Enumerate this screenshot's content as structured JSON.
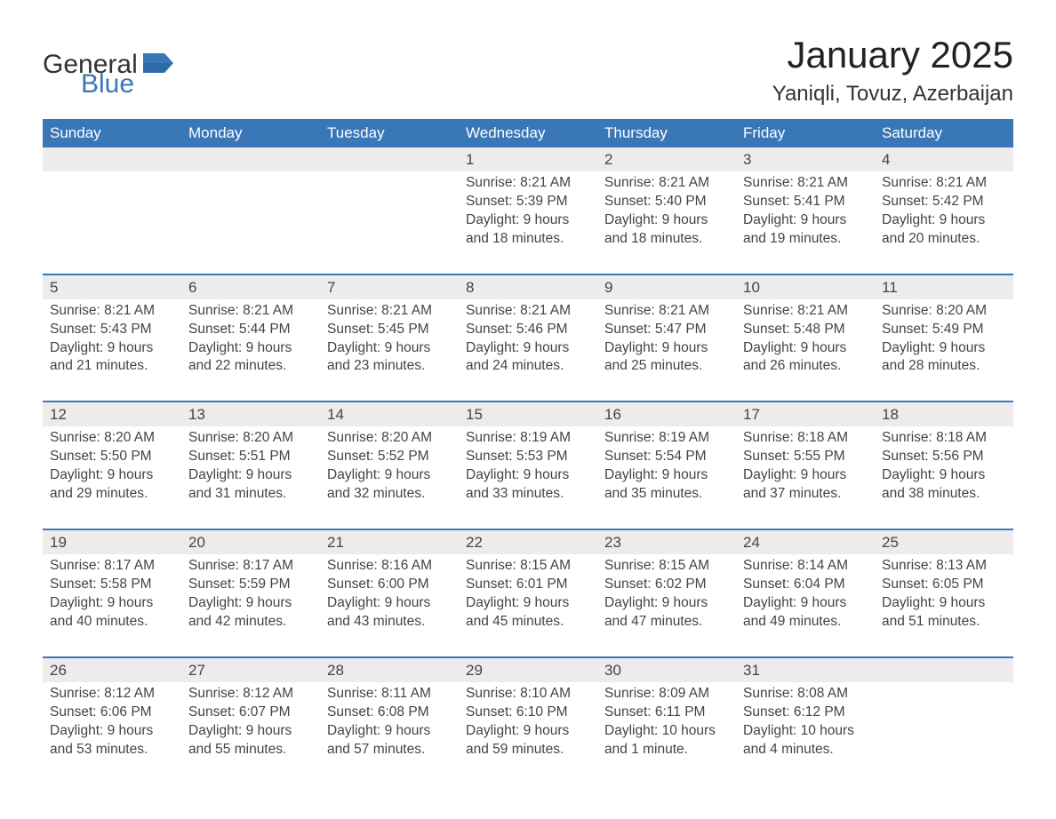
{
  "brand": {
    "general": "General",
    "blue": "Blue"
  },
  "title": "January 2025",
  "location": "Yaniqli, Tovuz, Azerbaijan",
  "colors": {
    "header_bg": "#3a77b7",
    "header_text": "#ffffff",
    "daynum_bg": "#ececec",
    "text": "#444444",
    "page_bg": "#ffffff",
    "rule": "#3a77b7"
  },
  "layout": {
    "columns": 7,
    "rows": 5
  },
  "day_headers": [
    "Sunday",
    "Monday",
    "Tuesday",
    "Wednesday",
    "Thursday",
    "Friday",
    "Saturday"
  ],
  "weeks": [
    [
      null,
      null,
      null,
      {
        "n": "1",
        "sunrise": "Sunrise: 8:21 AM",
        "sunset": "Sunset: 5:39 PM",
        "d1": "Daylight: 9 hours",
        "d2": "and 18 minutes."
      },
      {
        "n": "2",
        "sunrise": "Sunrise: 8:21 AM",
        "sunset": "Sunset: 5:40 PM",
        "d1": "Daylight: 9 hours",
        "d2": "and 18 minutes."
      },
      {
        "n": "3",
        "sunrise": "Sunrise: 8:21 AM",
        "sunset": "Sunset: 5:41 PM",
        "d1": "Daylight: 9 hours",
        "d2": "and 19 minutes."
      },
      {
        "n": "4",
        "sunrise": "Sunrise: 8:21 AM",
        "sunset": "Sunset: 5:42 PM",
        "d1": "Daylight: 9 hours",
        "d2": "and 20 minutes."
      }
    ],
    [
      {
        "n": "5",
        "sunrise": "Sunrise: 8:21 AM",
        "sunset": "Sunset: 5:43 PM",
        "d1": "Daylight: 9 hours",
        "d2": "and 21 minutes."
      },
      {
        "n": "6",
        "sunrise": "Sunrise: 8:21 AM",
        "sunset": "Sunset: 5:44 PM",
        "d1": "Daylight: 9 hours",
        "d2": "and 22 minutes."
      },
      {
        "n": "7",
        "sunrise": "Sunrise: 8:21 AM",
        "sunset": "Sunset: 5:45 PM",
        "d1": "Daylight: 9 hours",
        "d2": "and 23 minutes."
      },
      {
        "n": "8",
        "sunrise": "Sunrise: 8:21 AM",
        "sunset": "Sunset: 5:46 PM",
        "d1": "Daylight: 9 hours",
        "d2": "and 24 minutes."
      },
      {
        "n": "9",
        "sunrise": "Sunrise: 8:21 AM",
        "sunset": "Sunset: 5:47 PM",
        "d1": "Daylight: 9 hours",
        "d2": "and 25 minutes."
      },
      {
        "n": "10",
        "sunrise": "Sunrise: 8:21 AM",
        "sunset": "Sunset: 5:48 PM",
        "d1": "Daylight: 9 hours",
        "d2": "and 26 minutes."
      },
      {
        "n": "11",
        "sunrise": "Sunrise: 8:20 AM",
        "sunset": "Sunset: 5:49 PM",
        "d1": "Daylight: 9 hours",
        "d2": "and 28 minutes."
      }
    ],
    [
      {
        "n": "12",
        "sunrise": "Sunrise: 8:20 AM",
        "sunset": "Sunset: 5:50 PM",
        "d1": "Daylight: 9 hours",
        "d2": "and 29 minutes."
      },
      {
        "n": "13",
        "sunrise": "Sunrise: 8:20 AM",
        "sunset": "Sunset: 5:51 PM",
        "d1": "Daylight: 9 hours",
        "d2": "and 31 minutes."
      },
      {
        "n": "14",
        "sunrise": "Sunrise: 8:20 AM",
        "sunset": "Sunset: 5:52 PM",
        "d1": "Daylight: 9 hours",
        "d2": "and 32 minutes."
      },
      {
        "n": "15",
        "sunrise": "Sunrise: 8:19 AM",
        "sunset": "Sunset: 5:53 PM",
        "d1": "Daylight: 9 hours",
        "d2": "and 33 minutes."
      },
      {
        "n": "16",
        "sunrise": "Sunrise: 8:19 AM",
        "sunset": "Sunset: 5:54 PM",
        "d1": "Daylight: 9 hours",
        "d2": "and 35 minutes."
      },
      {
        "n": "17",
        "sunrise": "Sunrise: 8:18 AM",
        "sunset": "Sunset: 5:55 PM",
        "d1": "Daylight: 9 hours",
        "d2": "and 37 minutes."
      },
      {
        "n": "18",
        "sunrise": "Sunrise: 8:18 AM",
        "sunset": "Sunset: 5:56 PM",
        "d1": "Daylight: 9 hours",
        "d2": "and 38 minutes."
      }
    ],
    [
      {
        "n": "19",
        "sunrise": "Sunrise: 8:17 AM",
        "sunset": "Sunset: 5:58 PM",
        "d1": "Daylight: 9 hours",
        "d2": "and 40 minutes."
      },
      {
        "n": "20",
        "sunrise": "Sunrise: 8:17 AM",
        "sunset": "Sunset: 5:59 PM",
        "d1": "Daylight: 9 hours",
        "d2": "and 42 minutes."
      },
      {
        "n": "21",
        "sunrise": "Sunrise: 8:16 AM",
        "sunset": "Sunset: 6:00 PM",
        "d1": "Daylight: 9 hours",
        "d2": "and 43 minutes."
      },
      {
        "n": "22",
        "sunrise": "Sunrise: 8:15 AM",
        "sunset": "Sunset: 6:01 PM",
        "d1": "Daylight: 9 hours",
        "d2": "and 45 minutes."
      },
      {
        "n": "23",
        "sunrise": "Sunrise: 8:15 AM",
        "sunset": "Sunset: 6:02 PM",
        "d1": "Daylight: 9 hours",
        "d2": "and 47 minutes."
      },
      {
        "n": "24",
        "sunrise": "Sunrise: 8:14 AM",
        "sunset": "Sunset: 6:04 PM",
        "d1": "Daylight: 9 hours",
        "d2": "and 49 minutes."
      },
      {
        "n": "25",
        "sunrise": "Sunrise: 8:13 AM",
        "sunset": "Sunset: 6:05 PM",
        "d1": "Daylight: 9 hours",
        "d2": "and 51 minutes."
      }
    ],
    [
      {
        "n": "26",
        "sunrise": "Sunrise: 8:12 AM",
        "sunset": "Sunset: 6:06 PM",
        "d1": "Daylight: 9 hours",
        "d2": "and 53 minutes."
      },
      {
        "n": "27",
        "sunrise": "Sunrise: 8:12 AM",
        "sunset": "Sunset: 6:07 PM",
        "d1": "Daylight: 9 hours",
        "d2": "and 55 minutes."
      },
      {
        "n": "28",
        "sunrise": "Sunrise: 8:11 AM",
        "sunset": "Sunset: 6:08 PM",
        "d1": "Daylight: 9 hours",
        "d2": "and 57 minutes."
      },
      {
        "n": "29",
        "sunrise": "Sunrise: 8:10 AM",
        "sunset": "Sunset: 6:10 PM",
        "d1": "Daylight: 9 hours",
        "d2": "and 59 minutes."
      },
      {
        "n": "30",
        "sunrise": "Sunrise: 8:09 AM",
        "sunset": "Sunset: 6:11 PM",
        "d1": "Daylight: 10 hours",
        "d2": "and 1 minute."
      },
      {
        "n": "31",
        "sunrise": "Sunrise: 8:08 AM",
        "sunset": "Sunset: 6:12 PM",
        "d1": "Daylight: 10 hours",
        "d2": "and 4 minutes."
      },
      null
    ]
  ]
}
